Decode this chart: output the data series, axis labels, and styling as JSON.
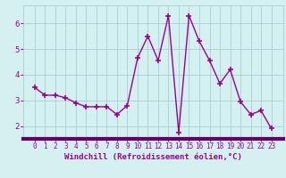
{
  "x": [
    0,
    1,
    2,
    3,
    4,
    5,
    6,
    7,
    8,
    9,
    10,
    11,
    12,
    13,
    14,
    15,
    16,
    17,
    18,
    19,
    20,
    21,
    22,
    23
  ],
  "y": [
    3.5,
    3.2,
    3.2,
    3.1,
    2.9,
    2.75,
    2.75,
    2.75,
    2.45,
    2.8,
    4.65,
    5.5,
    4.55,
    6.3,
    1.75,
    6.3,
    5.3,
    4.55,
    3.65,
    4.2,
    2.95,
    2.45,
    2.6,
    1.9
  ],
  "line_color": "#990099",
  "marker": "+",
  "marker_size": 5,
  "bg_color": "#d4f0f0",
  "grid_color": "#aacfcf",
  "xlabel": "Windchill (Refroidissement éolien,°C)",
  "tick_color": "#990099",
  "ylim": [
    1.5,
    6.7
  ],
  "yticks": [
    2,
    3,
    4,
    5,
    6
  ],
  "xticks": [
    0,
    1,
    2,
    3,
    4,
    5,
    6,
    7,
    8,
    9,
    10,
    11,
    12,
    13,
    14,
    15,
    16,
    17,
    18,
    19,
    20,
    21,
    22,
    23
  ],
  "spine_color": "#660066",
  "bottom_bar_color": "#660066"
}
